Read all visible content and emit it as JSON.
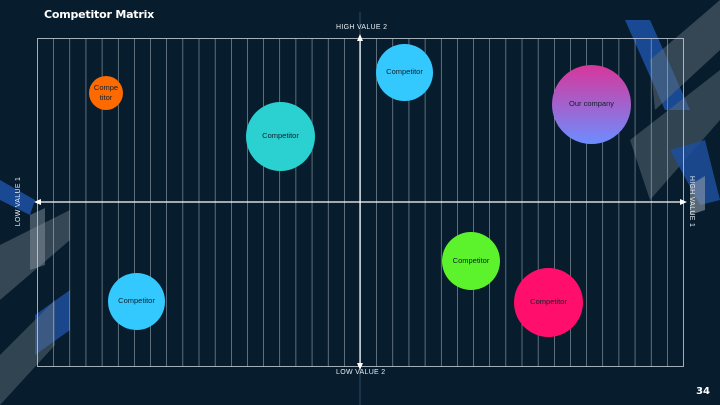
{
  "slide": {
    "title": "Competitor Matrix",
    "page_number": "34"
  },
  "axes": {
    "top_label": "HIGH VALUE 2",
    "bottom_label": "LOW VALUE 2",
    "left_label": "LOW VALUE 1",
    "right_label": "HIGH VALUE 1"
  },
  "bubbles": [
    {
      "lines": [
        "Compe",
        "titor"
      ],
      "color": "#ff6a00"
    },
    {
      "lines": [
        "Competitor"
      ],
      "color": "#2bd0d0"
    },
    {
      "lines": [
        "Competitor"
      ],
      "color": "#33c9ff"
    },
    {
      "lines": [
        "Our company"
      ],
      "gradient": [
        "#d8369a",
        "#6d8dff"
      ]
    },
    {
      "lines": [
        "Competitor"
      ],
      "color": "#5cf22c"
    },
    {
      "lines": [
        "Competitor"
      ],
      "color": "#ff0f6b"
    },
    {
      "lines": [
        "Competitor"
      ],
      "color": "#33c9ff"
    }
  ],
  "colors": {
    "background": "#071c2c",
    "grid_lines": "#c9d3dc",
    "axis_lines": "#ffffff",
    "accent_blue": "#1d4f9e"
  }
}
